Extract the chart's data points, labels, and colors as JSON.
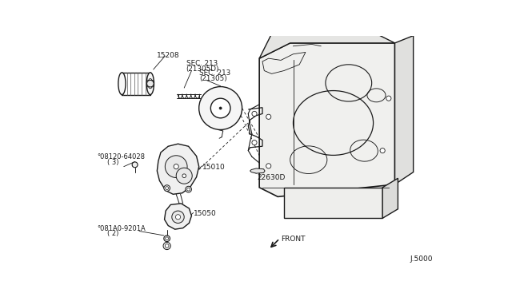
{
  "bg_color": "#ffffff",
  "line_color": "#1a1a1a",
  "label_color": "#1a1a1a",
  "sec213_top_text": "SEC. 213",
  "sec213_top_sub_text": "(21305D)",
  "sec213_bot_text": "SEC. 213",
  "sec213_bot_sub_text": "(21305)",
  "label_15208": "15208",
  "label_B08120": "°08120-64028",
  "label_three": "( 3)",
  "label_15010": "15010",
  "label_22630D": "22630D",
  "label_15050": "15050",
  "label_B081A0": "°081A0-9201A",
  "label_two": "( 2)",
  "label_J5000": "J.5000",
  "label_FRONT": "FRONT"
}
